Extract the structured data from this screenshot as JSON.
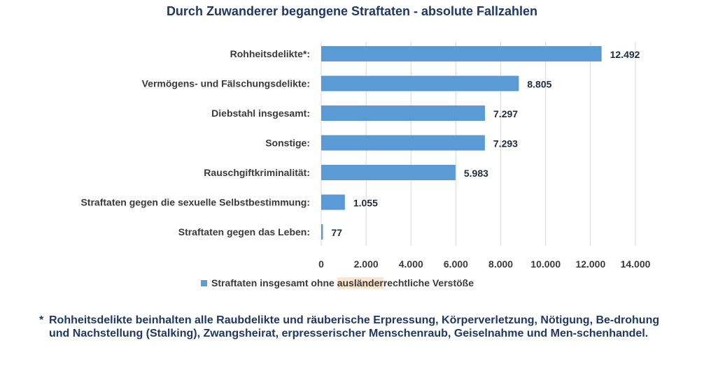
{
  "chart_data": {
    "type": "bar",
    "orientation": "horizontal",
    "title": "Durch Zuwanderer begangene Straftaten - absolute Fallzahlen",
    "categories": [
      "Rohheitsdelikte*:",
      "Vermögens- und Fälschungsdelikte:",
      "Diebstahl insgesamt:",
      "Sonstige:",
      "Rauschgiftkriminalität:",
      "Straftaten gegen die sexuelle Selbstbestimmung:",
      "Straftaten gegen das Leben:"
    ],
    "series": [
      {
        "name": "Straftaten insgesamt ohne ausländerrechtliche Verstöße",
        "values": [
          12492,
          8805,
          7297,
          7293,
          5983,
          1055,
          77
        ],
        "labels": [
          "12.492",
          "8.805",
          "7.297",
          "7.293",
          "5.983",
          "1.055",
          "77"
        ]
      }
    ],
    "xlim": [
      0,
      14000
    ],
    "xticks": [
      0,
      2000,
      4000,
      6000,
      8000,
      10000,
      12000,
      14000
    ],
    "xtick_labels": [
      "0",
      "2.000",
      "4.000",
      "6.000",
      "8.000",
      "10.000",
      "12.000",
      "14.000"
    ],
    "grid": true,
    "legend_position": "bottom",
    "bar_color": "#5b9bd5"
  },
  "legend": {
    "before": "Straftaten insgesamt ohne ",
    "highlight": "ausländer",
    "after": "rechtliche Verstöße"
  },
  "footnote": {
    "star": "*",
    "text": "Rohheitsdelikte beinhalten alle Raubdelikte und räuberische Erpressung, Körperverletzung, Nötigung, Be-drohung und Nachstellung (Stalking), Zwangsheirat, erpresserischer Menschenraub, Geiselnahme und Men-schenhandel."
  }
}
